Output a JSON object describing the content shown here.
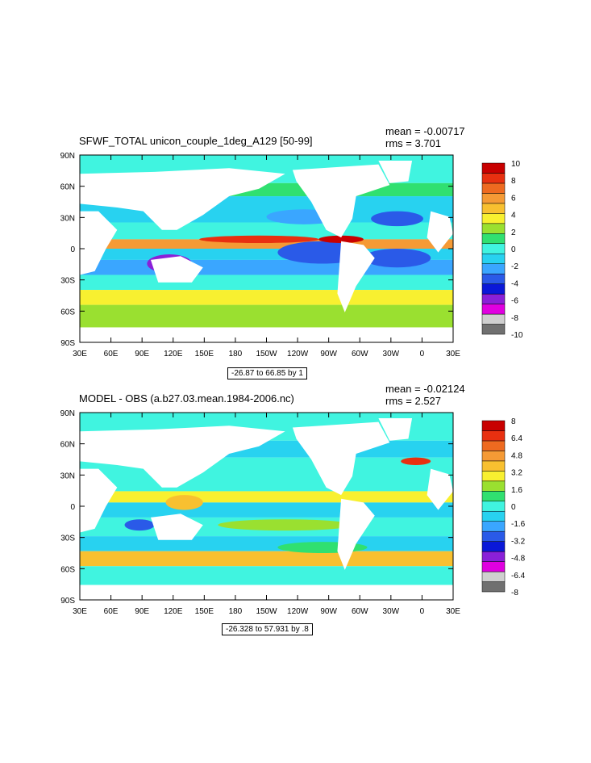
{
  "palette": [
    "#707070",
    "#cfcfcf",
    "#e000e0",
    "#8a20d8",
    "#0a18d8",
    "#2a5ae8",
    "#3aa6ff",
    "#28d2f0",
    "#40f4e0",
    "#30e070",
    "#9ae030",
    "#f8f030",
    "#f8c030",
    "#f59a35",
    "#ee6a20",
    "#e83010",
    "#c80000"
  ],
  "panels": [
    {
      "title": "SFWF_TOTAL unicon_couple_1deg_A129 [50-99]",
      "mean": "mean = -0.00717",
      "rms": "rms = 3.701",
      "range_text": "-26.87 to 66.85 by 1",
      "colorbar_labels": [
        "10",
        "8",
        "6",
        "4",
        "2",
        "0",
        "-2",
        "-4",
        "-6",
        "-8",
        "-10"
      ]
    },
    {
      "title": "MODEL - OBS (a.b27.03.mean.1984-2006.nc)",
      "mean": "mean = -0.02124",
      "rms": "rms = 2.527",
      "range_text": "-26.328 to 57.931 by .8",
      "colorbar_labels": [
        "8",
        "6.4",
        "4.8",
        "3.2",
        "1.6",
        "0",
        "-1.6",
        "-3.2",
        "-4.8",
        "-6.4",
        "-8"
      ]
    }
  ],
  "lat_labels": [
    "90N",
    "60N",
    "30N",
    "0",
    "30S",
    "60S",
    "90S"
  ],
  "lon_labels": [
    "30E",
    "60E",
    "90E",
    "120E",
    "150E",
    "180",
    "150W",
    "120W",
    "90W",
    "60W",
    "30W",
    "0",
    "30E"
  ]
}
